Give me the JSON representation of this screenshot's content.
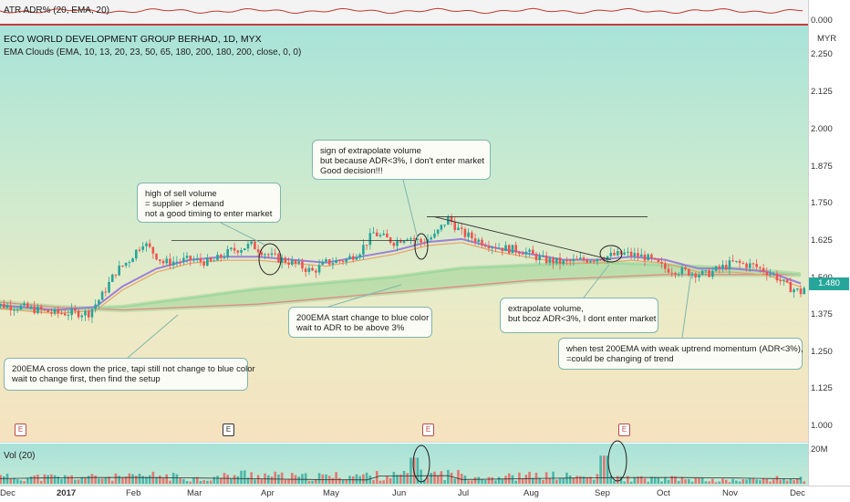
{
  "atr_panel": {
    "title": "ATR ADR% (20, EMA, 20)",
    "value_label": "0.000"
  },
  "header": {
    "title": "ECO WORLD DEVELOPMENT GROUP BERHAD, 1D, MYX",
    "indicator": "EMA Clouds (EMA, 10, 13, 20, 23, 50, 65, 180, 200, 180, 200, close, 0, 0)",
    "currency": "MYR"
  },
  "current_price": "1.480",
  "volume_panel": {
    "title": "Vol (20)",
    "max_label": "20M"
  },
  "price_axis_labels": [
    "2.250",
    "2.125",
    "2.000",
    "1.875",
    "1.750",
    "1.625",
    "1.500",
    "1.375",
    "1.250",
    "1.125",
    "1.000"
  ],
  "time_axis_labels": [
    "Dec",
    "2017",
    "Feb",
    "Mar",
    "Apr",
    "May",
    "Jun",
    "Jul",
    "Aug",
    "Sep",
    "Oct",
    "Nov",
    "Dec"
  ],
  "earnings_markers": [
    {
      "label": "E"
    },
    {
      "label": "E"
    },
    {
      "label": "E"
    },
    {
      "label": "E"
    }
  ],
  "annotations": [
    {
      "lines": [
        "high of sell volume",
        "= supplier > demand",
        "not a good timing to enter market"
      ]
    },
    {
      "lines": [
        "sign of extrapolate volume",
        "but because ADR<3%, I don't enter market",
        "Good decision!!!"
      ]
    },
    {
      "lines": [
        "200EMA start change to blue color",
        "wait to ADR to be above 3%"
      ]
    },
    {
      "lines": [
        "extrapolate volume,",
        "but bcoz ADR<3%, I dont enter market"
      ]
    },
    {
      "lines": [
        "when test 200EMA with weak uptrend momentum (ADR<3%),",
        "=could be changing of trend"
      ]
    },
    {
      "lines": [
        "200EMA cross down the price, tapi still not change to blue color",
        "wait to change first, then find the setup"
      ]
    }
  ],
  "chart_data": {
    "type": "line",
    "title": "ECO WORLD DEVELOPMENT GROUP BERHAD, 1D, MYX",
    "ylim": [
      0.95,
      2.3
    ],
    "x_labels": [
      "Dec",
      "2017",
      "Feb",
      "Mar",
      "Apr",
      "May",
      "Jun",
      "Jul",
      "Aug",
      "Sep",
      "Oct",
      "Nov",
      "Dec"
    ],
    "x_label_pos": [
      0.3,
      1,
      2,
      3,
      4,
      5,
      6,
      7,
      8,
      9,
      10,
      11,
      12
    ],
    "price_path": {
      "x": [
        0,
        0.5,
        1,
        1.5,
        1.7,
        1.9,
        2.1,
        2.3,
        2.6,
        3,
        3.3,
        3.6,
        3.9,
        4.2,
        4.5,
        4.8,
        5,
        5.3,
        5.5,
        5.7,
        6,
        6.2,
        6.4,
        6.6,
        6.8,
        7,
        7.3,
        7.6,
        7.9,
        8.2,
        8.5,
        8.8,
        9.1,
        9.4,
        9.7,
        10,
        10.3,
        10.6,
        11,
        11.3,
        11.6,
        11.8,
        12,
        12.1
      ],
      "close": [
        1.41,
        1.4,
        1.38,
        1.38,
        1.44,
        1.52,
        1.56,
        1.62,
        1.55,
        1.56,
        1.55,
        1.59,
        1.61,
        1.57,
        1.55,
        1.52,
        1.55,
        1.56,
        1.59,
        1.65,
        1.62,
        1.64,
        1.62,
        1.64,
        1.7,
        1.65,
        1.62,
        1.6,
        1.59,
        1.56,
        1.55,
        1.56,
        1.57,
        1.58,
        1.57,
        1.53,
        1.52,
        1.51,
        1.55,
        1.54,
        1.51,
        1.47,
        1.45,
        1.48
      ]
    },
    "ema_fast": {
      "x": [
        0,
        1,
        1.6,
        2,
        2.5,
        3,
        3.5,
        4,
        4.5,
        5,
        5.5,
        6,
        6.5,
        7,
        7.5,
        8,
        8.5,
        9,
        9.5,
        10,
        10.5,
        11,
        11.5,
        12
      ],
      "values": [
        1.41,
        1.39,
        1.4,
        1.47,
        1.53,
        1.56,
        1.57,
        1.57,
        1.56,
        1.55,
        1.57,
        1.59,
        1.62,
        1.63,
        1.6,
        1.58,
        1.56,
        1.56,
        1.57,
        1.56,
        1.53,
        1.53,
        1.52,
        1.48
      ]
    },
    "ema_slow": {
      "x": [
        0,
        1,
        2,
        3,
        4,
        5,
        6,
        7,
        8,
        9,
        10,
        11,
        12
      ],
      "values": [
        1.4,
        1.39,
        1.4,
        1.43,
        1.46,
        1.48,
        1.5,
        1.53,
        1.54,
        1.55,
        1.54,
        1.53,
        1.51
      ]
    },
    "ema_200": {
      "x": [
        0,
        1,
        2,
        3,
        4,
        5,
        6,
        7,
        8,
        9,
        10,
        11,
        12
      ],
      "values": [
        1.42,
        1.4,
        1.39,
        1.4,
        1.41,
        1.43,
        1.45,
        1.47,
        1.49,
        1.5,
        1.51,
        1.51,
        1.51
      ]
    },
    "resistance_levels": [
      1.625,
      1.705
    ],
    "trendline": {
      "x": [
        6.6,
        9.2
      ],
      "y": [
        1.705,
        1.56
      ]
    },
    "volume": {
      "max": 20,
      "x": [
        6.3,
        9.1,
        2.1,
        2.5,
        3.2,
        3.8,
        4.6,
        5.4,
        6.1,
        6.8,
        7.5,
        8.2,
        8.9,
        9.6,
        10.2,
        10.9,
        11.6
      ],
      "values": [
        13,
        14,
        4,
        5,
        3,
        6,
        4,
        5,
        5,
        6,
        4,
        5,
        4,
        3,
        3,
        2,
        3
      ]
    }
  }
}
